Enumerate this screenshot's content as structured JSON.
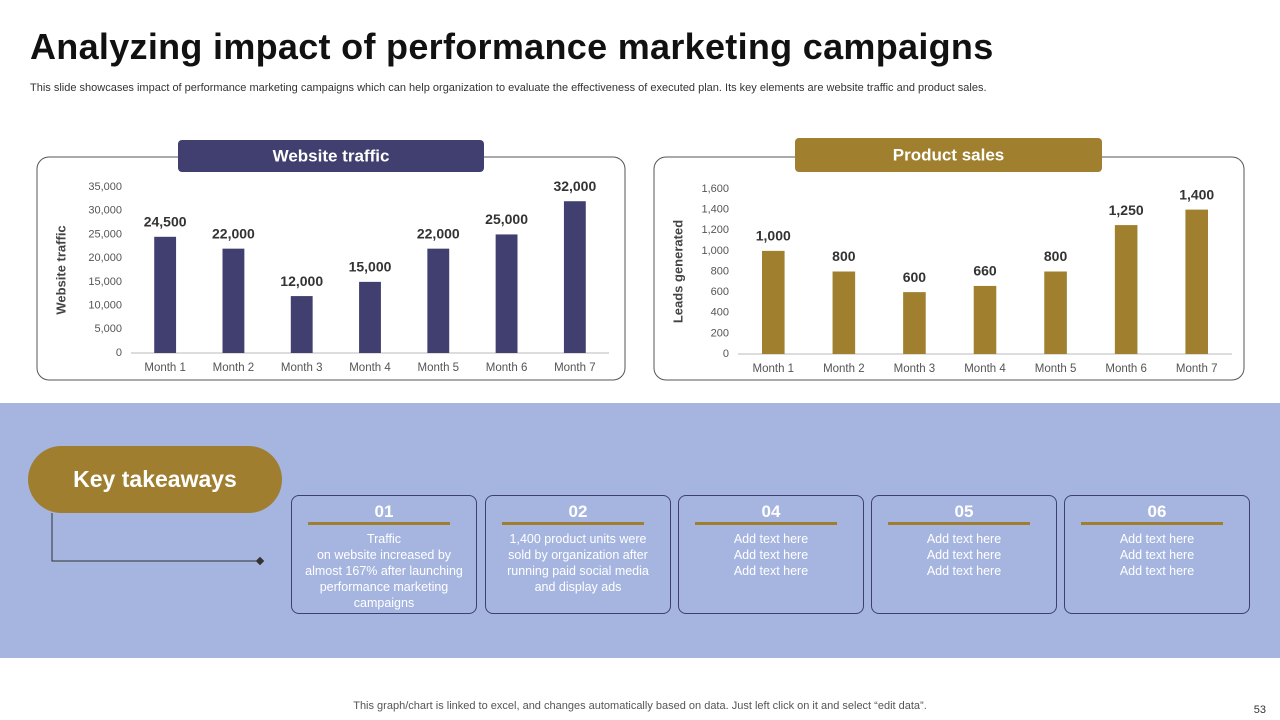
{
  "title": "Analyzing impact of performance marketing campaigns",
  "subtitle": "This slide showcases impact of performance marketing campaigns which can help organization to evaluate the effectiveness of executed plan. Its key elements are website traffic and product sales.",
  "chart_data": [
    {
      "type": "bar",
      "title": "Website traffic",
      "ylabel": "Website traffic",
      "color": "#403f6f",
      "categories": [
        "Month 1",
        "Month 2",
        "Month 3",
        "Month 4",
        "Month 5",
        "Month 6",
        "Month 7"
      ],
      "values": [
        24500,
        22000,
        12000,
        15000,
        22000,
        25000,
        32000
      ],
      "value_labels": [
        "24,500",
        "22,000",
        "12,000",
        "15,000",
        "22,000",
        "25,000",
        "32,000"
      ],
      "ylim": [
        0,
        35000
      ],
      "yticks": [
        0,
        {
          "value": 5000,
          "label": "5,000"
        },
        {
          "value": 10000,
          "label": "10,000"
        },
        {
          "value": 15000,
          "label": "15,000"
        },
        {
          "value": 20000,
          "label": "20,000"
        },
        {
          "value": 25000,
          "label": "25,000"
        },
        {
          "value": 30000,
          "label": "30,000"
        },
        {
          "value": 35000,
          "label": "35,000"
        }
      ]
    },
    {
      "type": "bar",
      "title": "Product sales",
      "ylabel": "Leads generated",
      "color": "#a07f2f",
      "categories": [
        "Month 1",
        "Month 2",
        "Month 3",
        "Month 4",
        "Month 5",
        "Month 6",
        "Month 7"
      ],
      "values": [
        1000,
        800,
        600,
        660,
        800,
        1250,
        1400
      ],
      "value_labels": [
        "1,000",
        "800",
        "600",
        "660",
        "800",
        "1,250",
        "1,400"
      ],
      "ylim": [
        0,
        1600
      ],
      "yticks": [
        0,
        200,
        400,
        600,
        800,
        {
          "value": 1000,
          "label": "1,000"
        },
        {
          "value": 1200,
          "label": "1,200"
        },
        {
          "value": 1400,
          "label": "1,400"
        },
        {
          "value": 1600,
          "label": "1,600"
        }
      ]
    }
  ],
  "takeaways": {
    "title": "Key takeaways",
    "cards": [
      {
        "number": "01",
        "text": "Traffic\non website increased by almost 167% after launching performance marketing campaigns"
      },
      {
        "number": "02",
        "text": "1,400 product units were sold by organization after running paid social media and display ads"
      },
      {
        "number": "04",
        "text": "Add text here\nAdd text here\nAdd text here"
      },
      {
        "number": "05",
        "text": "Add text here\nAdd text here\nAdd text here"
      },
      {
        "number": "06",
        "text": "Add text here\nAdd text here\nAdd text here"
      }
    ]
  },
  "footer": "This graph/chart is linked to excel, and changes automatically based on data. Just left click on it and select “edit data”.",
  "page_number": "53"
}
